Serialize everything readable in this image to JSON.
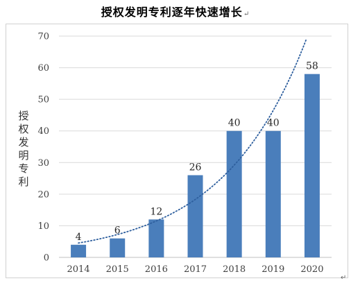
{
  "page": {
    "title": "授权发明专利逐年快速增长",
    "title_mark": "↵",
    "tail_mark": "↵"
  },
  "chart_data": {
    "type": "bar",
    "title": "授权发明专利逐年快速增长",
    "xlabel": "",
    "ylabel": "授权发明专利",
    "categories": [
      "2014",
      "2015",
      "2016",
      "2017",
      "2018",
      "2019",
      "2020"
    ],
    "values": [
      4,
      6,
      12,
      26,
      40,
      40,
      58
    ],
    "ylim": [
      0,
      70
    ],
    "yticks": [
      0,
      10,
      20,
      30,
      40,
      50,
      60,
      70
    ],
    "grid": true,
    "bar_color": "#4a7ebb",
    "trendline": {
      "type": "exponential",
      "style": "dotted",
      "color": "#2e5f9e"
    }
  }
}
